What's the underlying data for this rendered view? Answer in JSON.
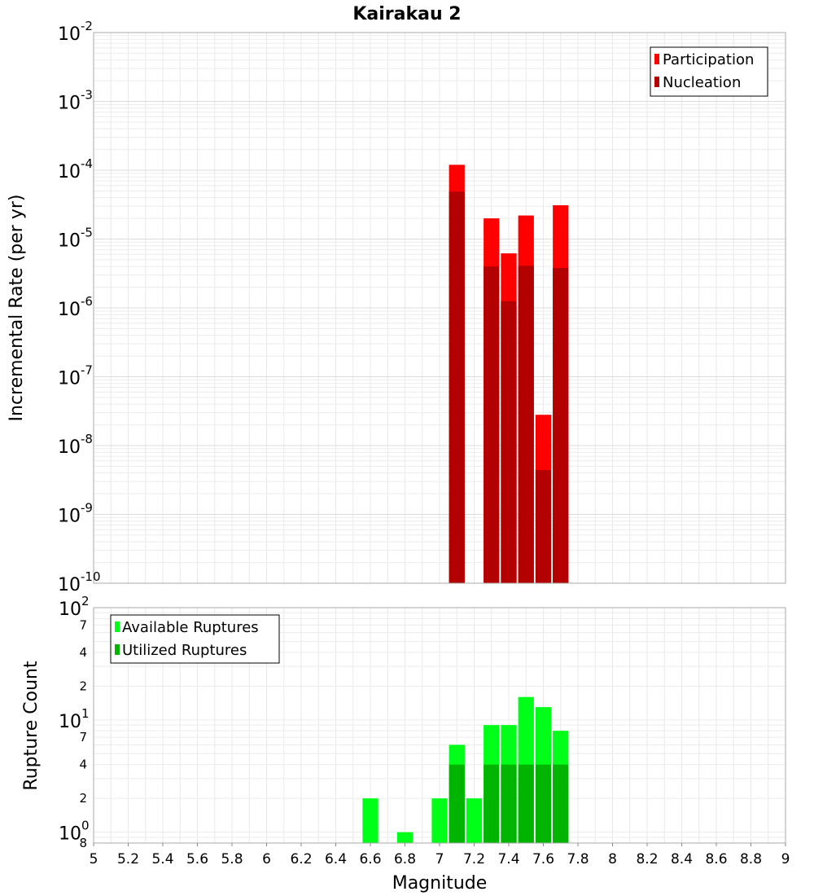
{
  "title": "Kairakau 2",
  "chart_data": [
    {
      "type": "bar",
      "scale": "log",
      "ylabel": "Incremental Rate (per yr)",
      "ylim_exp": [
        -10,
        -2
      ],
      "yticks": [
        {
          "base": "10",
          "exp": "-2"
        },
        {
          "base": "10",
          "exp": "-3"
        },
        {
          "base": "10",
          "exp": "-4"
        },
        {
          "base": "10",
          "exp": "-5"
        },
        {
          "base": "10",
          "exp": "-6"
        },
        {
          "base": "10",
          "exp": "-7"
        },
        {
          "base": "10",
          "exp": "-8"
        },
        {
          "base": "10",
          "exp": "-9"
        },
        {
          "base": "10",
          "exp": "-10"
        }
      ],
      "bin_width": 0.1,
      "series": [
        {
          "name": "Participation",
          "color": "#ff0000",
          "x": [
            7.1,
            7.3,
            7.4,
            7.5,
            7.6,
            7.7
          ],
          "values": [
            0.00012,
            2e-05,
            6.2e-06,
            2.2e-05,
            2.8e-08,
            3.1e-05
          ]
        },
        {
          "name": "Nucleation",
          "color": "#b30000",
          "x": [
            7.1,
            7.3,
            7.4,
            7.5,
            7.6,
            7.7
          ],
          "values": [
            4.9e-05,
            4e-06,
            1.25e-06,
            4.1e-06,
            4.4e-09,
            3.8e-06
          ]
        }
      ],
      "legend_position": "top-right",
      "grid": true
    },
    {
      "type": "bar",
      "scale": "log",
      "ylabel": "Rupture Count",
      "ylim": [
        0.8,
        100
      ],
      "major_ticks": [
        {
          "base": "10",
          "exp": "2",
          "value": 100
        },
        {
          "base": "10",
          "exp": "1",
          "value": 10
        },
        {
          "base": "10",
          "exp": "0",
          "value": 1
        }
      ],
      "minor_ticks": [
        {
          "label": "7",
          "value": 70
        },
        {
          "label": "4",
          "value": 40
        },
        {
          "label": "2",
          "value": 20
        },
        {
          "label": "7",
          "value": 7
        },
        {
          "label": "4",
          "value": 4
        },
        {
          "label": "2",
          "value": 2
        },
        {
          "label": "8",
          "value": 0.8
        }
      ],
      "bin_width": 0.1,
      "series": [
        {
          "name": "Available Ruptures",
          "color": "#00ff18",
          "x": [
            6.6,
            6.8,
            7.0,
            7.1,
            7.2,
            7.3,
            7.4,
            7.5,
            7.6,
            7.7
          ],
          "values": [
            2,
            1,
            2,
            6,
            2,
            9,
            9,
            16,
            13,
            8
          ]
        },
        {
          "name": "Utilized Ruptures",
          "color": "#00b400",
          "x": [
            7.1,
            7.3,
            7.4,
            7.5,
            7.6,
            7.7
          ],
          "values": [
            4,
            4,
            4,
            4,
            4,
            4
          ]
        }
      ],
      "legend_position": "top-left",
      "grid": true
    }
  ],
  "xaxis": {
    "label": "Magnitude",
    "range": [
      5,
      9
    ],
    "ticks": [
      "5",
      "5.2",
      "5.4",
      "5.6",
      "5.8",
      "6",
      "6.2",
      "6.4",
      "6.6",
      "6.8",
      "7",
      "7.2",
      "7.4",
      "7.6",
      "7.8",
      "8",
      "8.2",
      "8.4",
      "8.6",
      "8.8",
      "9"
    ]
  }
}
